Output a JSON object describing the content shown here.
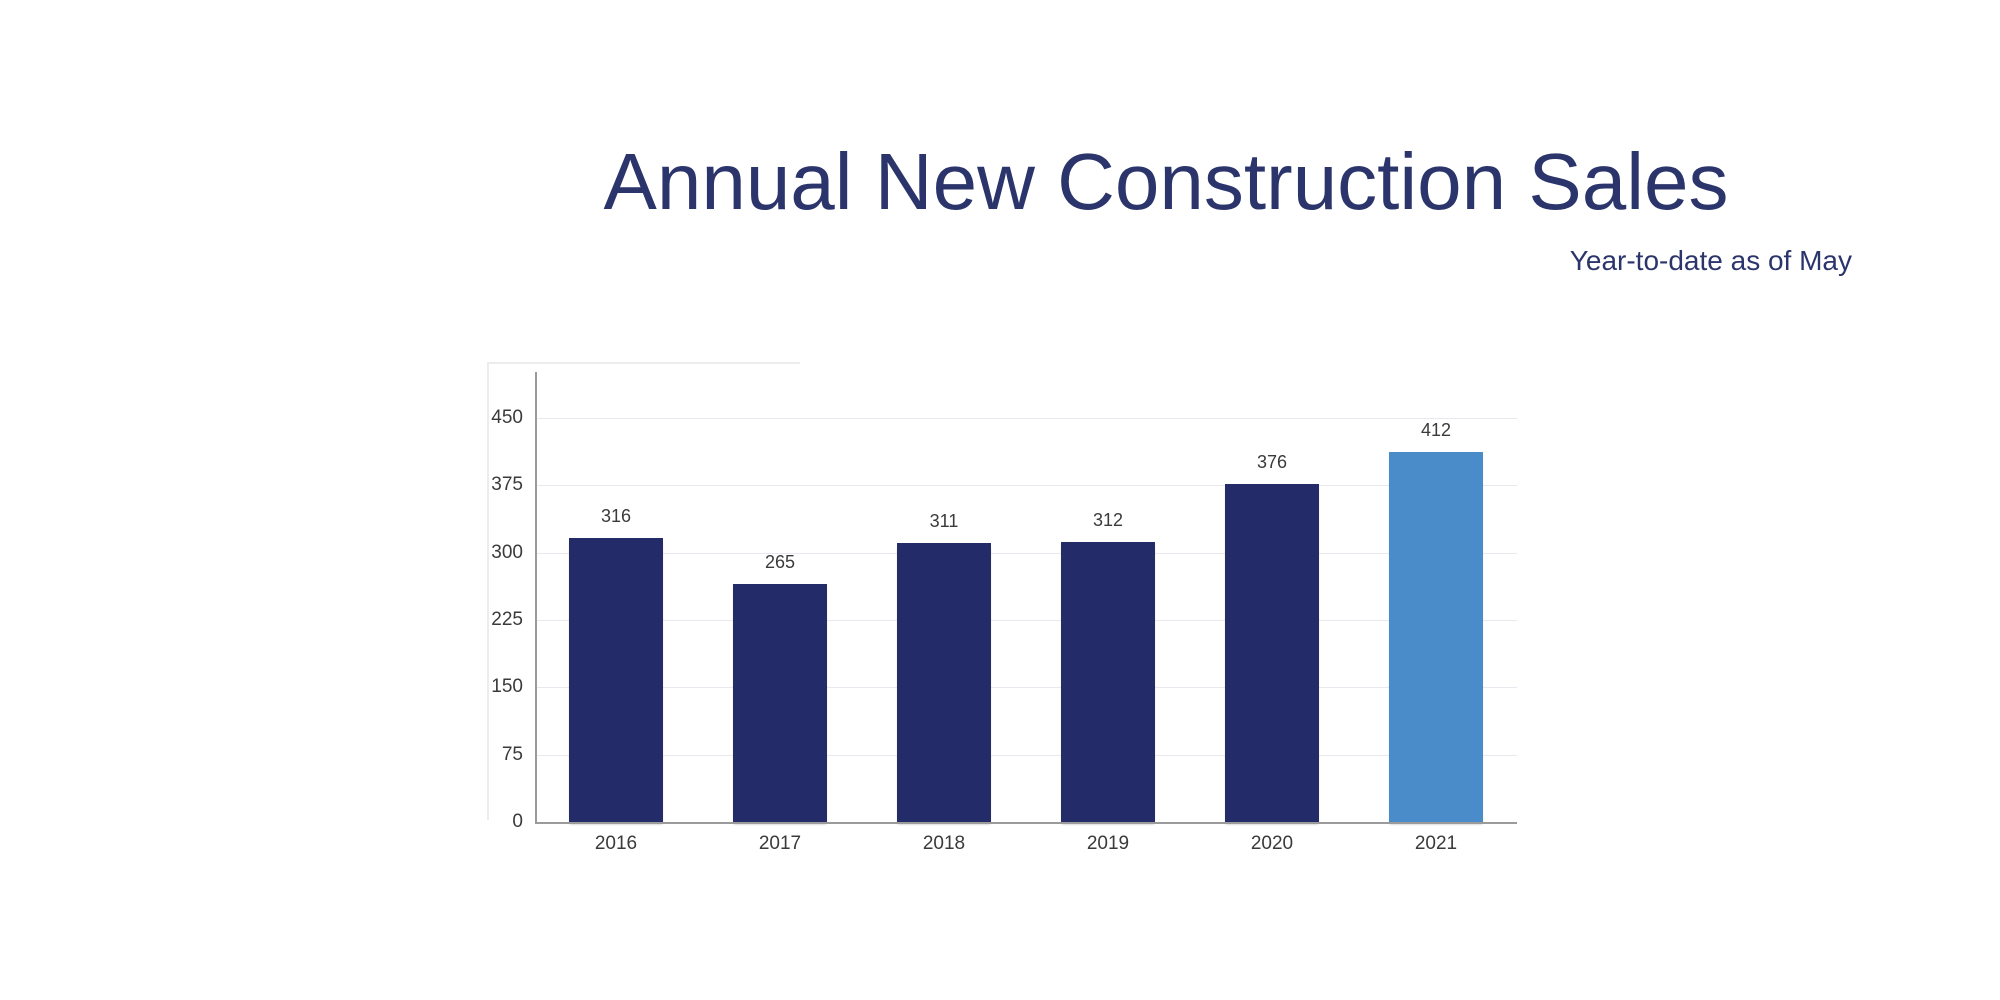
{
  "page": {
    "background_color": "#ffffff"
  },
  "header": {
    "title": "Annual New Construction Sales",
    "subtitle": "Year-to-date as of May",
    "title_color": "#2b356b"
  },
  "chart_data": {
    "type": "bar",
    "title": "Annual New Construction Sales",
    "subtitle": "Year-to-date as of May",
    "categories": [
      "2016",
      "2017",
      "2018",
      "2019",
      "2020",
      "2021"
    ],
    "values": [
      316,
      265,
      311,
      312,
      376,
      412
    ],
    "data_labels": [
      "316",
      "265",
      "311",
      "312",
      "376",
      "412"
    ],
    "xlabel": "",
    "ylabel": "",
    "ylim": [
      0,
      500
    ],
    "yticks": [
      0,
      75,
      150,
      225,
      300,
      375,
      450
    ],
    "grid": "horizontal",
    "legend": "none",
    "bar_color": "#232c68",
    "highlight_category": "2021",
    "highlight_color": "#4a8cca",
    "tick_label_color": "#3a3a3a",
    "value_label_color": "#3a3a3a",
    "axis_color": "#9b9b9b",
    "gridline_color": "#e8e8ee"
  }
}
